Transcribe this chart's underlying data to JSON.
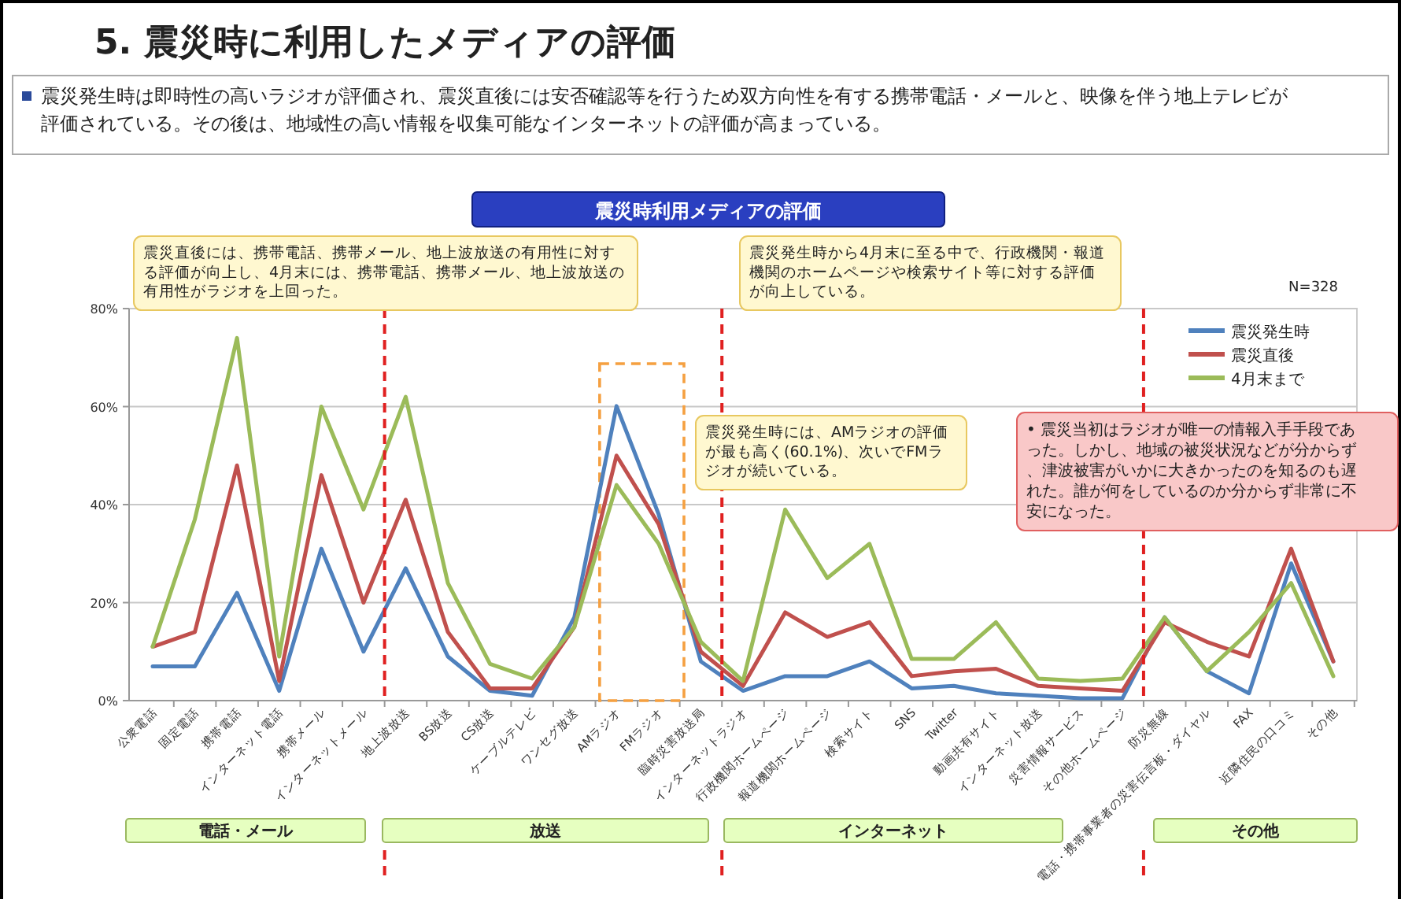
{
  "chart_data": {
    "type": "line",
    "title": "5. 震災時に利用したメディアの評価",
    "subtitle": "震災発生時は即時性の高いラジオが評価され、震災直後には安否確認等を行うため双方向性を有する携帯電話・メールと、映像を伴う地上テレビが評価されている。その後は、地域性の高い情報を収集可能なインターネットの評価が高まっている。",
    "categories": [
      "公衆電話",
      "固定電話",
      "携帯電話",
      "インターネット電話",
      "携帯メール",
      "インターネットメール",
      "地上波放送",
      "BS放送",
      "CS放送",
      "ケーブルテレビ",
      "ワンセグ放送",
      "AMラジオ",
      "FMラジオ",
      "臨時災害放送局",
      "インターネットラジオ",
      "行政機関ホームページ",
      "報道機関ホームページ",
      "検索サイト",
      "SNS",
      "Twitter",
      "動画共有サイト",
      "インターネット放送",
      "災害情報サービス",
      "その他ホームページ",
      "防災無線",
      "電話・携帯事業者の災害伝言板・ダイヤル",
      "FAX",
      "近隣住民の口コミ",
      "その他"
    ],
    "series": [
      {
        "name": "震災発生時",
        "color": "#4f81bd",
        "values": [
          7,
          7,
          22,
          2,
          31,
          10,
          27,
          9,
          2,
          1,
          17,
          60.1,
          38,
          8,
          2,
          5,
          5,
          8,
          2.5,
          3,
          1.5,
          1,
          0.5,
          0.5,
          17,
          6,
          1.5,
          28,
          8
        ]
      },
      {
        "name": "震災直後",
        "color": "#c0504d",
        "values": [
          11,
          14,
          48,
          4,
          46,
          20,
          41,
          14,
          2.5,
          2.5,
          15,
          50,
          36,
          10,
          3,
          18,
          13,
          16,
          5,
          6,
          6.5,
          3,
          2.5,
          2,
          16,
          12,
          9,
          31,
          8
        ]
      },
      {
        "name": "4月末まで",
        "color": "#9bbb59",
        "values": [
          11,
          37,
          74,
          9,
          60,
          39,
          62,
          24,
          7.5,
          4.5,
          15,
          44,
          32,
          12,
          4,
          39,
          25,
          32,
          8.5,
          8.5,
          16,
          4.5,
          4,
          4.5,
          17,
          6,
          14,
          24,
          5
        ]
      }
    ],
    "ylim": [
      0,
      80
    ],
    "yticks": [
      {
        "value": 0,
        "label": "0%"
      },
      {
        "value": 20,
        "label": "20%"
      },
      {
        "value": 40,
        "label": "40%"
      },
      {
        "value": 60,
        "label": "60%"
      },
      {
        "value": 80,
        "label": "80%"
      }
    ],
    "grid": "y",
    "legend": "top right",
    "marker": "none",
    "line_style": "solid",
    "annotations": [
      "震災時利用メディアの評価",
      "N=328",
      "震災直後には、携帯電話、携帯メール、地上波放送の有用性に対する評価が向上し、4月末には、携帯電話、携帯メール、地上波放送の有用性がラジオを上回った。",
      "震災発生時から4月末に至る中で、行政機関・報道機関のホームページや検索サイト等に対する評価が向上している。",
      "震災発生時には、AMラジオの評価が最も高く(60.1%)、次いでFMラジオが続いている。",
      "• 震災当初はラジオが唯一の情報入手手段であった。しかし、地域の被災状況などが分からず、津波被害がいかに大きかったのを知るのも遅れた。誰が何をしているのか分からず非常に不安になった。",
      "電話・メール",
      "放送",
      "インターネット",
      "その他"
    ]
  }
}
